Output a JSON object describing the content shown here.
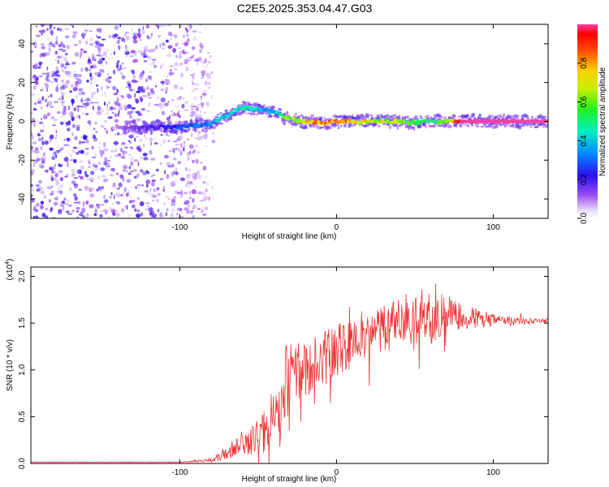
{
  "title": "C2E5.2025.353.04.47.G03",
  "colors": {
    "snr_line": "#ee3333",
    "dots": "#7a1fe0",
    "axis": "#000000"
  },
  "chart_data": [
    {
      "type": "heatmap",
      "name": "spectrogram",
      "xlabel": "Height of straight line (km)",
      "ylabel": "Frequency (Hz)",
      "xlim": [
        -195,
        135
      ],
      "ylim": [
        -50,
        50
      ],
      "xticks": [
        -100,
        0,
        100
      ],
      "xtick_labels": [
        "-100",
        "0",
        "100"
      ],
      "yticks": [
        -40,
        -20,
        0,
        20,
        40
      ],
      "ytick_labels": [
        "-40",
        "-20",
        "0",
        "20",
        "40"
      ],
      "colorbar": {
        "label": "Normalized spectral amplitude",
        "range": [
          0.0,
          1.0
        ],
        "ticks": [
          0.0,
          0.2,
          0.4,
          0.6,
          0.8
        ],
        "tick_labels": [
          "0.0",
          "0.2",
          "0.4",
          "0.6",
          "0.8"
        ]
      },
      "ridge": {
        "x": [
          -140,
          -120,
          -100,
          -90,
          -80,
          -70,
          -60,
          -50,
          -40,
          -35,
          -30,
          -20,
          -10,
          0,
          10,
          20,
          30,
          40,
          50,
          60,
          70,
          80,
          90,
          100,
          110,
          120,
          135
        ],
        "freq": [
          -3,
          -3,
          -3,
          -2,
          -1,
          3,
          7,
          6,
          5,
          3,
          1,
          0,
          -1,
          0,
          0,
          0,
          0,
          0,
          -1,
          0,
          0,
          0,
          0,
          0,
          0,
          0,
          0
        ],
        "amplitude": [
          0.1,
          0.2,
          0.3,
          0.35,
          0.4,
          0.45,
          0.5,
          0.45,
          0.4,
          0.55,
          0.7,
          0.85,
          0.95,
          0.9,
          0.85,
          0.8,
          0.75,
          0.7,
          0.6,
          0.6,
          0.7,
          1.0,
          1.0,
          1.0,
          1.0,
          1.0,
          1.0
        ]
      },
      "noise_region_x": [
        -195,
        -80
      ],
      "noise_amplitude_range": [
        0.0,
        0.25
      ]
    },
    {
      "type": "line",
      "name": "snr",
      "xlabel": "Height of straight line (km)",
      "ylabel": "SNR (10 * v/v)",
      "yscale_label": "(x10",
      "yscale_exp": "4",
      "xlim": [
        -195,
        135
      ],
      "ylim": [
        0,
        2.1
      ],
      "xticks": [
        -100,
        0,
        100
      ],
      "xtick_labels": [
        "-100",
        "0",
        "100"
      ],
      "yticks": [
        0.0,
        0.5,
        1.0,
        1.5,
        2.0
      ],
      "ytick_labels": [
        "0.0",
        "0.5",
        "1.0",
        "1.5",
        "2.0"
      ],
      "series": [
        {
          "name": "SNR",
          "envelope_x": [
            -195,
            -150,
            -100,
            -80,
            -70,
            -60,
            -50,
            -40,
            -35,
            -30,
            -25,
            -20,
            -10,
            0,
            10,
            20,
            30,
            40,
            50,
            60,
            70,
            80,
            90,
            100,
            110,
            120,
            135
          ],
          "envelope_y": [
            0.01,
            0.01,
            0.01,
            0.03,
            0.12,
            0.2,
            0.3,
            0.42,
            0.65,
            0.85,
            0.95,
            1.0,
            1.1,
            1.2,
            1.3,
            1.4,
            1.45,
            1.5,
            1.52,
            1.55,
            1.6,
            1.58,
            1.55,
            1.53,
            1.52,
            1.52,
            1.52
          ],
          "variability": [
            0.0,
            0.0,
            0.0,
            0.02,
            0.08,
            0.12,
            0.2,
            0.4,
            0.5,
            0.5,
            0.35,
            0.3,
            0.28,
            0.3,
            0.28,
            0.28,
            0.25,
            0.25,
            0.25,
            0.28,
            0.2,
            0.15,
            0.1,
            0.07,
            0.05,
            0.04,
            0.03
          ]
        }
      ]
    }
  ]
}
